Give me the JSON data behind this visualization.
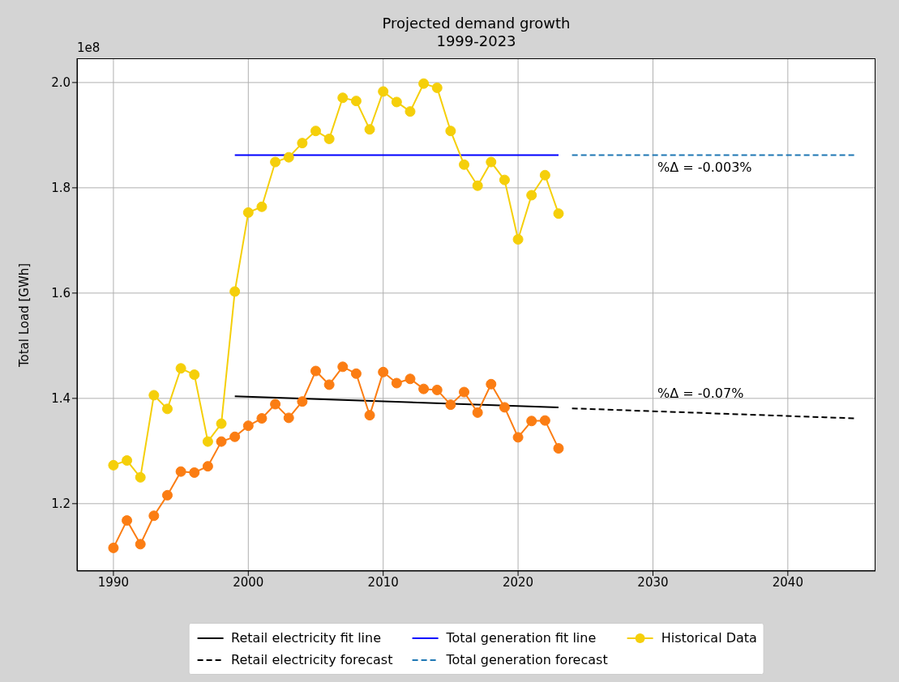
{
  "chart_data": {
    "type": "line",
    "title": "Projected demand growth\n1999-2023",
    "ylabel": "Total Load [GWh]",
    "xlim": [
      1987.3,
      2046.5
    ],
    "xticks": [
      1990,
      2000,
      2010,
      2020,
      2030,
      2040
    ],
    "ylim": [
      1.072,
      2.046
    ],
    "yticks": [
      {
        "value": 1.2,
        "label": "1.2"
      },
      {
        "value": 1.4,
        "label": "1.4"
      },
      {
        "value": 1.6,
        "label": "1.6"
      },
      {
        "value": 1.8,
        "label": "1.8"
      },
      {
        "value": 2.0,
        "label": "2.0"
      }
    ],
    "grid": true,
    "legend": "bottom",
    "annotations": [
      "1e8",
      "%Δ = -0.003%",
      "%Δ = -0.07%"
    ],
    "series": [
      {
        "name": "Retail electricity fit line",
        "color": "#000000",
        "line_style": "solid",
        "marker": "none",
        "x": [
          1999,
          2023
        ],
        "values": [
          1.404,
          1.383
        ]
      },
      {
        "name": "Retail electricity forecast",
        "color": "#000000",
        "line_style": "dashed",
        "marker": "none",
        "x": [
          2024,
          2045
        ],
        "values": [
          1.381,
          1.362
        ]
      },
      {
        "name": "Total generation fit line",
        "color": "#0000ff",
        "line_style": "solid",
        "marker": "none",
        "x": [
          1999,
          2023
        ],
        "values": [
          1.862,
          1.862
        ]
      },
      {
        "name": "Total generation forecast",
        "color": "#1f77b4",
        "line_style": "dashed",
        "marker": "none",
        "x": [
          2024,
          2045
        ],
        "values": [
          1.862,
          1.862
        ]
      },
      {
        "name": "Historical Data",
        "color": "#f5cf0a",
        "line_style": "solid",
        "marker": "circle",
        "x": [
          1990,
          1991,
          1992,
          1993,
          1994,
          1995,
          1996,
          1997,
          1998,
          1999,
          2000,
          2001,
          2002,
          2003,
          2004,
          2005,
          2006,
          2007,
          2008,
          2009,
          2010,
          2011,
          2012,
          2013,
          2014,
          2015,
          2016,
          2017,
          2018,
          2019,
          2020,
          2021,
          2022,
          2023
        ],
        "values": [
          1.273,
          1.282,
          1.25,
          1.406,
          1.38,
          1.457,
          1.445,
          1.318,
          1.352,
          1.603,
          1.753,
          1.764,
          1.849,
          1.858,
          1.885,
          1.908,
          1.893,
          1.971,
          1.965,
          1.911,
          1.983,
          1.963,
          1.945,
          1.998,
          1.99,
          1.908,
          1.844,
          1.804,
          1.849,
          1.815,
          1.702,
          1.786,
          1.824,
          1.751
        ]
      },
      {
        "color": "#fb7d13",
        "line_style": "solid",
        "marker": "circle",
        "x": [
          1990,
          1991,
          1992,
          1993,
          1994,
          1995,
          1996,
          1997,
          1998,
          1999,
          2000,
          2001,
          2002,
          2003,
          2004,
          2005,
          2006,
          2007,
          2008,
          2009,
          2010,
          2011,
          2012,
          2013,
          2014,
          2015,
          2016,
          2017,
          2018,
          2019,
          2020,
          2021,
          2022,
          2023
        ],
        "values": [
          1.116,
          1.168,
          1.123,
          1.177,
          1.216,
          1.261,
          1.259,
          1.271,
          1.318,
          1.327,
          1.348,
          1.362,
          1.389,
          1.363,
          1.394,
          1.452,
          1.426,
          1.46,
          1.447,
          1.368,
          1.45,
          1.429,
          1.437,
          1.418,
          1.416,
          1.388,
          1.412,
          1.373,
          1.427,
          1.383,
          1.326,
          1.357,
          1.358,
          1.305
        ]
      }
    ]
  }
}
